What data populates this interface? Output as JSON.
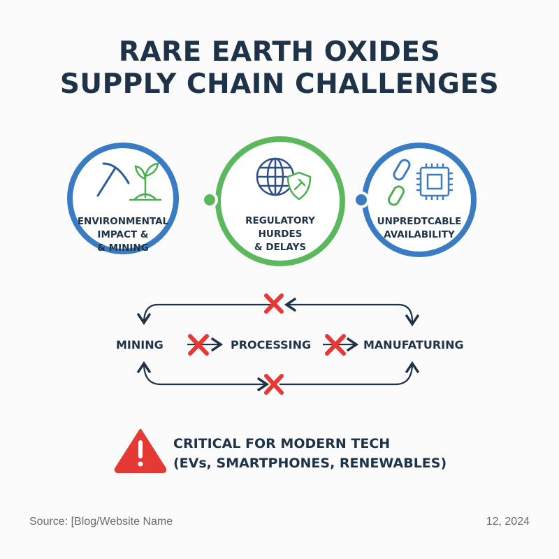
{
  "title": {
    "line1": "RARE EARTH OXIDES",
    "line2": "SUPPLY CHAIN CHALLENGES"
  },
  "challenges": [
    {
      "lines": [
        "ENVIRONMENTAL",
        "IMPACT &",
        "& MINING"
      ],
      "icons": [
        "pickaxe-icon",
        "sprout-icon"
      ],
      "ring_color": "#3a7cc3"
    },
    {
      "lines": [
        "REGULATORY",
        "HURDES",
        "& DELAYS"
      ],
      "icons": [
        "globe-icon",
        "gavel-shield-icon"
      ],
      "ring_color": "#5cb85c"
    },
    {
      "lines": [
        "UNPREDTCABLE",
        "AVAILABILITY"
      ],
      "icons": [
        "broken-chain-icon",
        "microchip-icon"
      ],
      "ring_color": "#3a7cc3"
    }
  ],
  "flow": {
    "steps": [
      "MINING",
      "PROCESSING",
      "MANUFATURING"
    ],
    "broken_marker": "red-x-icon",
    "marker_color": "#e53935"
  },
  "warning": {
    "icon": "warning-triangle-icon",
    "line1": "CRITICAL FOR MODERN TECH",
    "line2": "(EVs, SMARTPHONES, RENEWABLES)",
    "color": "#e53935"
  },
  "footer": {
    "source": "Source: [Blog/Website Name",
    "date": "12, 2024"
  }
}
